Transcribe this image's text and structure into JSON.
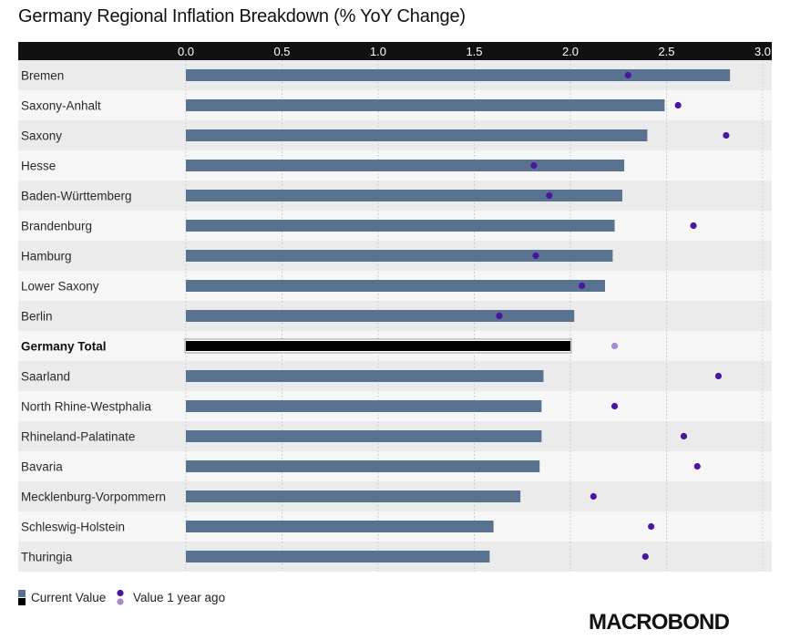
{
  "chart_data": {
    "type": "bar",
    "orientation": "horizontal",
    "title": "Germany Regional Inflation Breakdown (% YoY Change)",
    "xlim": [
      0,
      3.0
    ],
    "x_ticks": [
      "0.0",
      "0.5",
      "1.0",
      "1.5",
      "2.0",
      "2.5",
      "3.0"
    ],
    "categories": [
      "Bremen",
      "Saxony-Anhalt",
      "Saxony",
      "Hesse",
      "Baden-Württemberg",
      "Brandenburg",
      "Hamburg",
      "Lower Saxony",
      "Berlin",
      "Germany Total",
      "Saarland",
      "North Rhine-Westphalia",
      "Rhineland-Palatinate",
      "Bavaria",
      "Mecklenburg-Vorpommern",
      "Schleswig-Holstein",
      "Thuringia"
    ],
    "highlight_category": "Germany Total",
    "series": [
      {
        "name": "Current Value",
        "kind": "bar",
        "values": [
          2.83,
          2.49,
          2.4,
          2.28,
          2.27,
          2.23,
          2.22,
          2.18,
          2.02,
          2.0,
          1.86,
          1.85,
          1.85,
          1.84,
          1.74,
          1.6,
          1.58
        ]
      },
      {
        "name": "Value 1 year ago",
        "kind": "dot",
        "values": [
          2.3,
          2.56,
          2.81,
          1.81,
          1.89,
          2.64,
          1.82,
          2.06,
          1.63,
          2.23,
          2.77,
          2.23,
          2.59,
          2.66,
          2.12,
          2.42,
          2.39
        ]
      }
    ],
    "colors": {
      "bar": "#58728f",
      "bar_total": "#000000",
      "dot": "#4b159f",
      "dot_total": "#a58bd3",
      "row_dark": "#ebebeb",
      "row_light": "#f6f6f6",
      "axis_band": "#111111"
    },
    "legend": {
      "placement": "bottom-left",
      "current_label": "Current Value",
      "prior_label": "Value 1 year ago"
    },
    "grid": true
  },
  "logo": {
    "text": "MACROBOND"
  }
}
